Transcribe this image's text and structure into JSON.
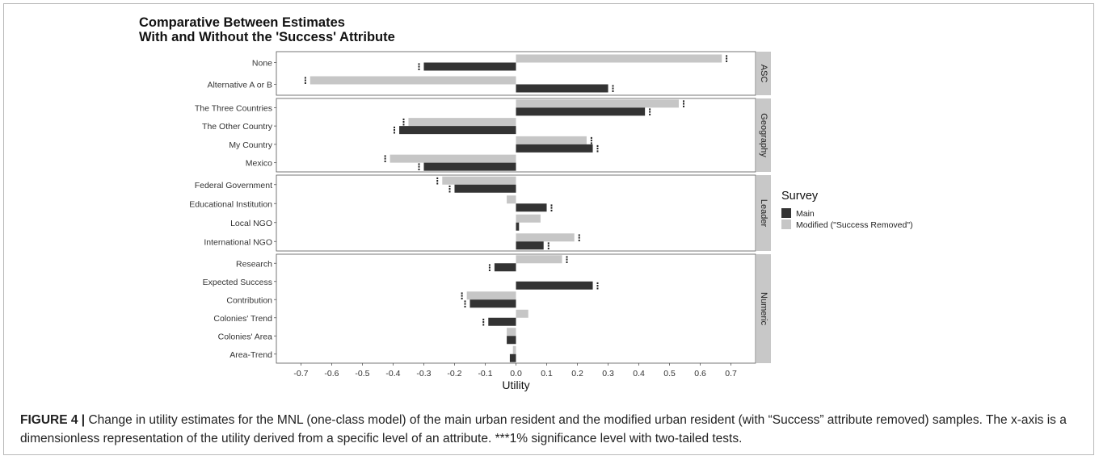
{
  "chart_data": {
    "type": "bar",
    "orientation": "horizontal",
    "title": "Comparative Between Estimates\n With and Without the 'Success' Attribute",
    "xlabel": "Utility",
    "xlim": [
      -0.78,
      0.78
    ],
    "x_ticks": [
      "-0.7",
      "-0.6",
      "-0.5",
      "-0.4",
      "-0.3",
      "-0.2",
      "-0.1",
      "0.0",
      "0.1",
      "0.2",
      "0.3",
      "0.4",
      "0.5",
      "0.6",
      "0.7"
    ],
    "legend": {
      "title": "Survey",
      "position": "right",
      "entries": [
        {
          "name": "Main",
          "color": "#333333"
        },
        {
          "name": "Modified (\"Success Removed\")",
          "color": "#c6c6c6"
        }
      ]
    },
    "significance_marker": "⋮",
    "panels": [
      {
        "name": "ASC",
        "categories": [
          {
            "label": "None",
            "main": -0.3,
            "modified": 0.67,
            "main_sig": true,
            "modified_sig": true
          },
          {
            "label": "Alternative A or B",
            "main": 0.3,
            "modified": -0.67,
            "main_sig": true,
            "modified_sig": true
          }
        ]
      },
      {
        "name": "Geography",
        "categories": [
          {
            "label": "The Three Countries",
            "main": 0.42,
            "modified": 0.53,
            "main_sig": true,
            "modified_sig": true
          },
          {
            "label": "The Other Country",
            "main": -0.38,
            "modified": -0.35,
            "main_sig": true,
            "modified_sig": true
          },
          {
            "label": "My Country",
            "main": 0.25,
            "modified": 0.23,
            "main_sig": true,
            "modified_sig": true
          },
          {
            "label": "Mexico",
            "main": -0.3,
            "modified": -0.41,
            "main_sig": true,
            "modified_sig": true
          }
        ]
      },
      {
        "name": "Leader",
        "categories": [
          {
            "label": "Federal Government",
            "main": -0.2,
            "modified": -0.24,
            "main_sig": true,
            "modified_sig": true
          },
          {
            "label": "Educational Institution",
            "main": 0.1,
            "modified": -0.03,
            "main_sig": true,
            "modified_sig": false
          },
          {
            "label": "Local NGO",
            "main": 0.01,
            "modified": 0.08,
            "main_sig": false,
            "modified_sig": false
          },
          {
            "label": "International NGO",
            "main": 0.09,
            "modified": 0.19,
            "main_sig": true,
            "modified_sig": true
          }
        ]
      },
      {
        "name": "Numeric",
        "categories": [
          {
            "label": "Research",
            "main": -0.07,
            "modified": 0.15,
            "main_sig": true,
            "modified_sig": true
          },
          {
            "label": "Expected Success",
            "main": 0.25,
            "modified": null,
            "main_sig": true,
            "modified_sig": false
          },
          {
            "label": "Contribution",
            "main": -0.15,
            "modified": -0.16,
            "main_sig": true,
            "modified_sig": true
          },
          {
            "label": "Colonies' Trend",
            "main": -0.09,
            "modified": 0.04,
            "main_sig": true,
            "modified_sig": false
          },
          {
            "label": "Colonies' Area",
            "main": -0.03,
            "modified": -0.03,
            "main_sig": false,
            "modified_sig": false
          },
          {
            "label": "Area-Trend",
            "main": -0.02,
            "modified": -0.01,
            "main_sig": false,
            "modified_sig": false
          }
        ]
      }
    ]
  },
  "caption": {
    "label": "FIGURE 4 |",
    "text": " Change in utility estimates for the MNL (one-class model) of the main urban resident and the modified urban resident (with “Success” attribute removed) samples. The x-axis is a dimensionless representation of the utility derived from a specific level of an attribute. ***1% significance level with two-tailed tests."
  }
}
